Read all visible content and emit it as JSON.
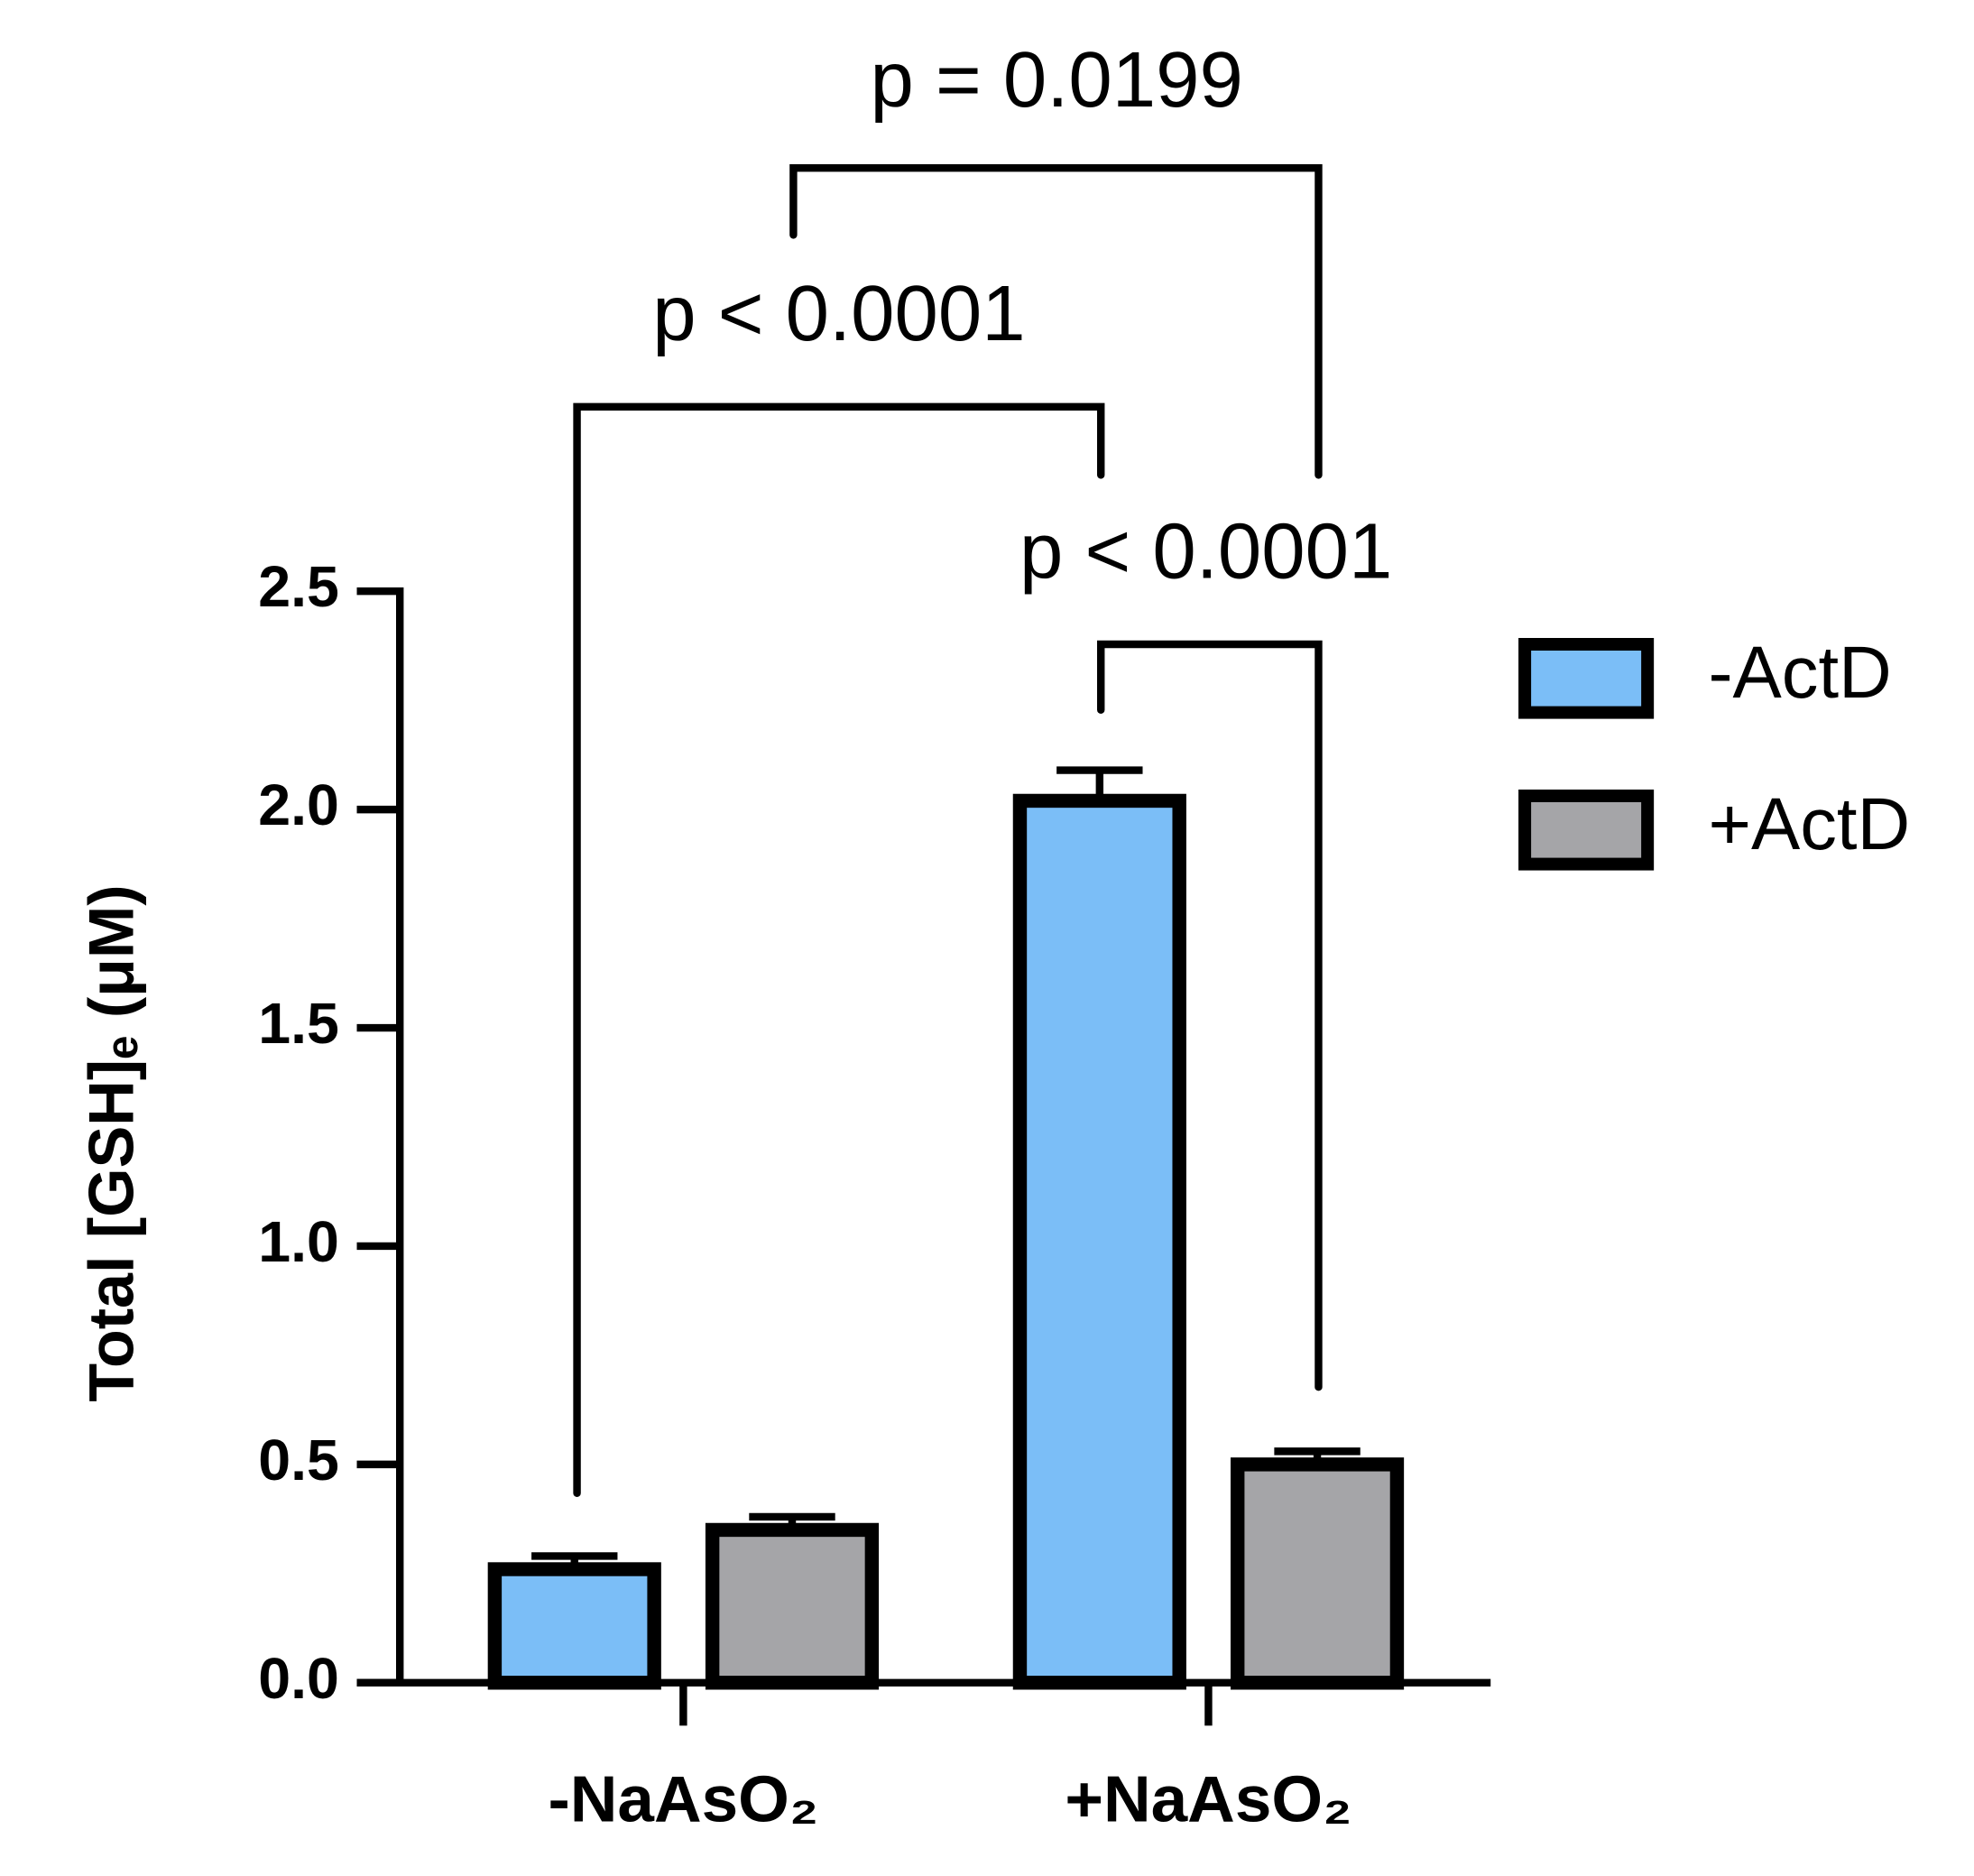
{
  "chart_data": {
    "type": "bar",
    "y_label": "Total [GSH]ₑ (μM)",
    "categories": [
      "-NaAsO₂",
      "+NaAsO₂"
    ],
    "series": [
      {
        "name": "-ActD",
        "color": "#7bbef7",
        "values": [
          0.26,
          2.02
        ],
        "errors": [
          0.03,
          0.07
        ]
      },
      {
        "name": "+ActD",
        "color": "#a5a5a8",
        "values": [
          0.35,
          0.5
        ],
        "errors": [
          0.03,
          0.03
        ]
      }
    ],
    "ylim": [
      0,
      2.5
    ],
    "yticks": [
      {
        "value": 0,
        "label": "0.0"
      },
      0.5,
      {
        "value": 1,
        "label": "1.0"
      },
      1.5,
      {
        "value": 2,
        "label": "2.0"
      },
      2.5
    ],
    "annotations": [
      "p = 0.0199",
      "p < 0.0001",
      "p < 0.0001"
    ],
    "legend": "right"
  }
}
